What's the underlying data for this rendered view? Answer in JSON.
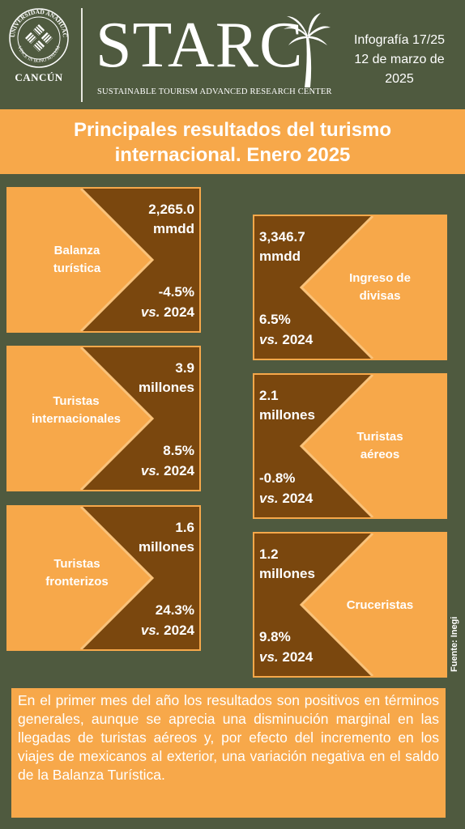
{
  "header": {
    "university": "UNIVERSIDAD ANÁHUAC",
    "motto": "VINCE IN BONO MALUM",
    "campus": "CANCÚN",
    "brand": "STARC",
    "brand_subtitle": "SUSTAINABLE TOURISM ADVANCED RESEARCH CENTER",
    "infografia": "Infografía 17/25",
    "date_line1": "12 de marzo de",
    "date_line2": "2025"
  },
  "title": {
    "line1": "Principales resultados del turismo",
    "line2": "internacional. Enero 2025"
  },
  "cards": {
    "balanza": {
      "label1": "Balanza",
      "label2": "turística",
      "value1": "2,265.0",
      "value2": "mmdd",
      "pct": "-4.5%",
      "vs": "vs.",
      "year": " 2024"
    },
    "ingreso": {
      "label1": "Ingreso de",
      "label2": "divisas",
      "value1": "3,346.7",
      "value2": "mmdd",
      "pct": "6.5%",
      "vs": "vs.",
      "year": " 2024"
    },
    "internacionales": {
      "label1": "Turistas",
      "label2": "internacionales",
      "value1": "3.9",
      "value2": "millones",
      "pct": "8.5%",
      "vs": "vs.",
      "year": " 2024"
    },
    "aereos": {
      "label1": "Turistas",
      "label2": "aéreos",
      "value1": "2.1",
      "value2": "millones",
      "pct": "-0.8%",
      "vs": "vs.",
      "year": " 2024"
    },
    "fronterizos": {
      "label1": "Turistas",
      "label2": "fronterizos",
      "value1": "1.6",
      "value2": "millones",
      "pct": "24.3%",
      "vs": "vs.",
      "year": " 2024"
    },
    "cruceristas": {
      "label1": "Cruceristas",
      "value1": "1.2",
      "value2": "millones",
      "pct": "9.8%",
      "vs": "vs.",
      "year": " 2024"
    }
  },
  "source": "Fuente: Inegi",
  "summary": "En el primer mes del año los resultados son positivos en términos generales, aunque se aprecia una disminución marginal en las llegadas de turistas aéreos y, por efecto del incremento en los viajes de mexicanos al exterior, una variación negativa en el saldo de la Balanza Turística.",
  "colors": {
    "background": "#4f5a3f",
    "accent": "#f7a84a",
    "card": "#7a470e"
  }
}
